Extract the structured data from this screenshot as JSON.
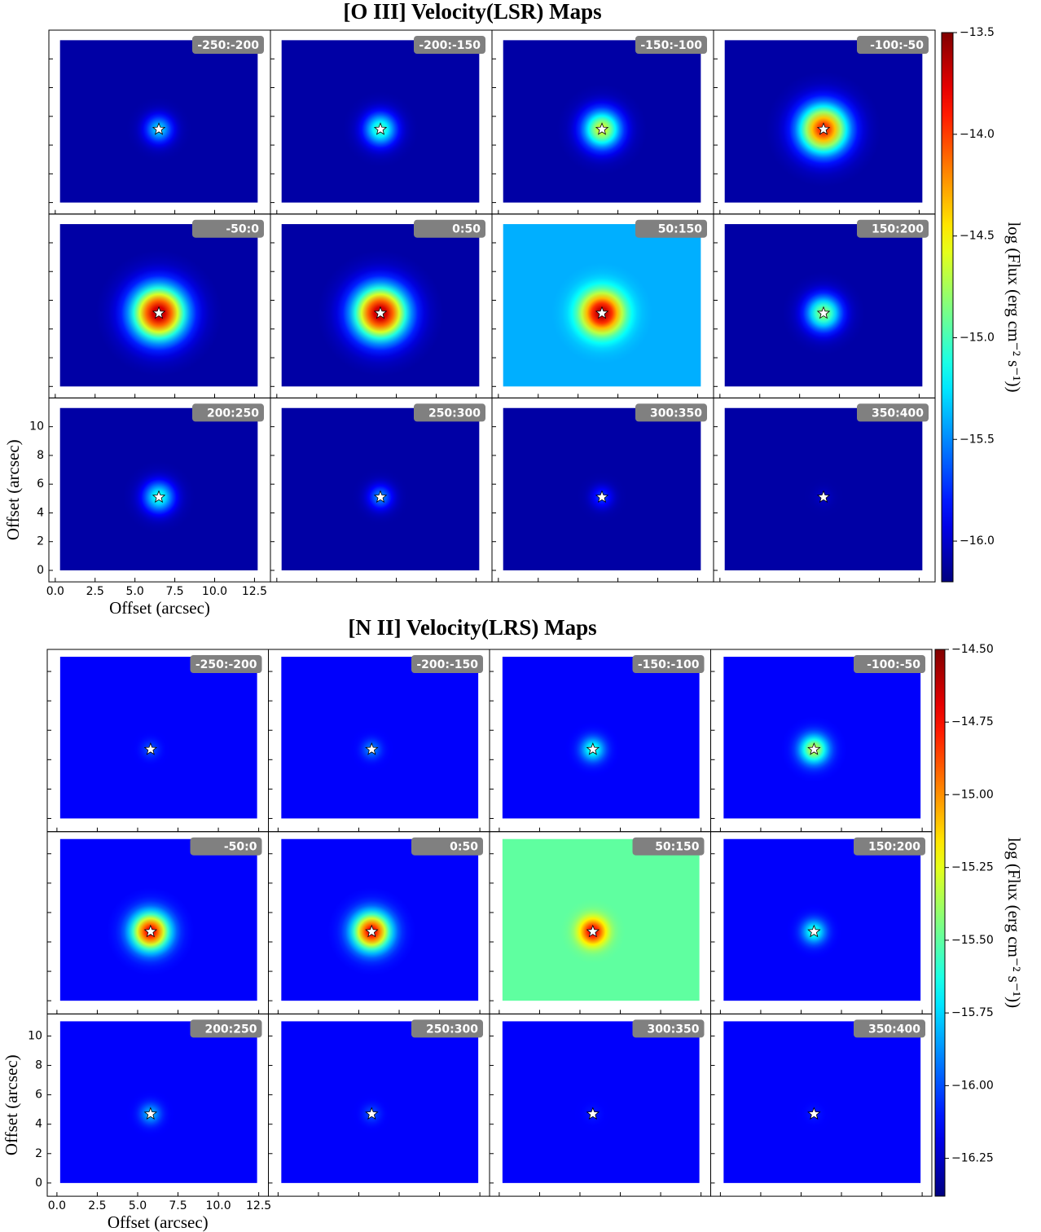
{
  "chart_data": [
    {
      "type": "heatmap-grid",
      "title": "[O III] Velocity(LSR) Maps",
      "xlabel": "Offset (arcsec)",
      "ylabel": "Offset (arcsec)",
      "colorbar_label": "log (Flux (erg cm⁻² s⁻¹))",
      "xlim": [
        -0.4,
        13.5
      ],
      "ylim": [
        -0.8,
        12.0
      ],
      "extent": [
        0.3,
        12.7,
        0,
        11.3
      ],
      "xticks": [
        {
          "value": 0,
          "label": "0.0"
        },
        {
          "value": 2.5,
          "label": "2.5"
        },
        {
          "value": 5,
          "label": "5.0"
        },
        {
          "value": 7.5,
          "label": "7.5"
        },
        {
          "value": 10,
          "label": "10.0"
        },
        {
          "value": 12.5,
          "label": "12.5"
        }
      ],
      "yticks": [
        0,
        2,
        4,
        6,
        8,
        10
      ],
      "clim": [
        -16.2,
        -13.5
      ],
      "cticks": [
        {
          "value": -16,
          "label": "−16.0"
        },
        {
          "value": -15.5,
          "label": "−15.5"
        },
        {
          "value": -15,
          "label": "−15.0"
        },
        {
          "value": -14.5,
          "label": "−14.5"
        },
        {
          "value": -14,
          "label": "−14.0"
        },
        {
          "value": -13.5,
          "label": "−13.5"
        }
      ],
      "star": [
        6.5,
        5.1
      ],
      "panels": [
        {
          "label": "-250:-200",
          "background": -16.1,
          "peak": -15.3
        },
        {
          "label": "-200:-150",
          "background": -16.1,
          "peak": -15.0
        },
        {
          "label": "-150:-100",
          "background": -16.1,
          "peak": -14.6
        },
        {
          "label": "-100:-50",
          "background": -16.1,
          "peak": -13.9
        },
        {
          "label": "-50:0",
          "background": -16.1,
          "peak": -13.6
        },
        {
          "label": "0:50",
          "background": -16.1,
          "peak": -13.6
        },
        {
          "label": "50:150",
          "background": -15.4,
          "peak": -13.6
        },
        {
          "label": "150:200",
          "background": -16.1,
          "peak": -14.8
        },
        {
          "label": "200:250",
          "background": -16.1,
          "peak": -15.1
        },
        {
          "label": "250:300",
          "background": -16.1,
          "peak": -15.5
        },
        {
          "label": "300:350",
          "background": -16.1,
          "peak": -15.7
        },
        {
          "label": "350:400",
          "background": -16.1,
          "peak": -16.0
        }
      ]
    },
    {
      "type": "heatmap-grid",
      "title": "[N II] Velocity(LRS) Maps",
      "xlabel": "Offset (arcsec)",
      "ylabel": "Offset (arcsec)",
      "colorbar_label": "log (Flux (erg cm⁻² s⁻¹))",
      "xlim": [
        -0.6,
        13.1
      ],
      "ylim": [
        -0.9,
        11.5
      ],
      "extent": [
        0.2,
        12.4,
        0,
        11.0
      ],
      "xticks": [
        {
          "value": 0,
          "label": "0.0"
        },
        {
          "value": 2.5,
          "label": "2.5"
        },
        {
          "value": 5,
          "label": "5.0"
        },
        {
          "value": 7.5,
          "label": "7.5"
        },
        {
          "value": 10,
          "label": "10.0"
        },
        {
          "value": 12.5,
          "label": "12.5"
        }
      ],
      "yticks": [
        0,
        2,
        4,
        6,
        8,
        10
      ],
      "clim": [
        -16.38,
        -14.5
      ],
      "cticks": [
        {
          "value": -16.25,
          "label": "−16.25"
        },
        {
          "value": -16,
          "label": "−16.00"
        },
        {
          "value": -15.75,
          "label": "−15.75"
        },
        {
          "value": -15.5,
          "label": "−15.50"
        },
        {
          "value": -15.25,
          "label": "−15.25"
        },
        {
          "value": -15,
          "label": "−15.00"
        },
        {
          "value": -14.75,
          "label": "−14.75"
        },
        {
          "value": -14.5,
          "label": "−14.50"
        }
      ],
      "star": [
        5.8,
        4.7
      ],
      "panels": [
        {
          "label": "-250:-200",
          "background": -16.15,
          "peak": -16.0
        },
        {
          "label": "-200:-150",
          "background": -16.15,
          "peak": -15.9
        },
        {
          "label": "-150:-100",
          "background": -16.15,
          "peak": -15.6
        },
        {
          "label": "-100:-50",
          "background": -16.15,
          "peak": -15.3
        },
        {
          "label": "-50:0",
          "background": -16.15,
          "peak": -14.7
        },
        {
          "label": "0:50",
          "background": -16.15,
          "peak": -14.7
        },
        {
          "label": "50:150",
          "background": -15.5,
          "peak": -14.7
        },
        {
          "label": "150:200",
          "background": -16.15,
          "peak": -15.6
        },
        {
          "label": "200:250",
          "background": -16.15,
          "peak": -15.8
        },
        {
          "label": "250:300",
          "background": -16.15,
          "peak": -16.0
        },
        {
          "label": "300:350",
          "background": -16.15,
          "peak": -16.1
        },
        {
          "label": "350:400",
          "background": -16.15,
          "peak": -16.1
        }
      ]
    }
  ]
}
